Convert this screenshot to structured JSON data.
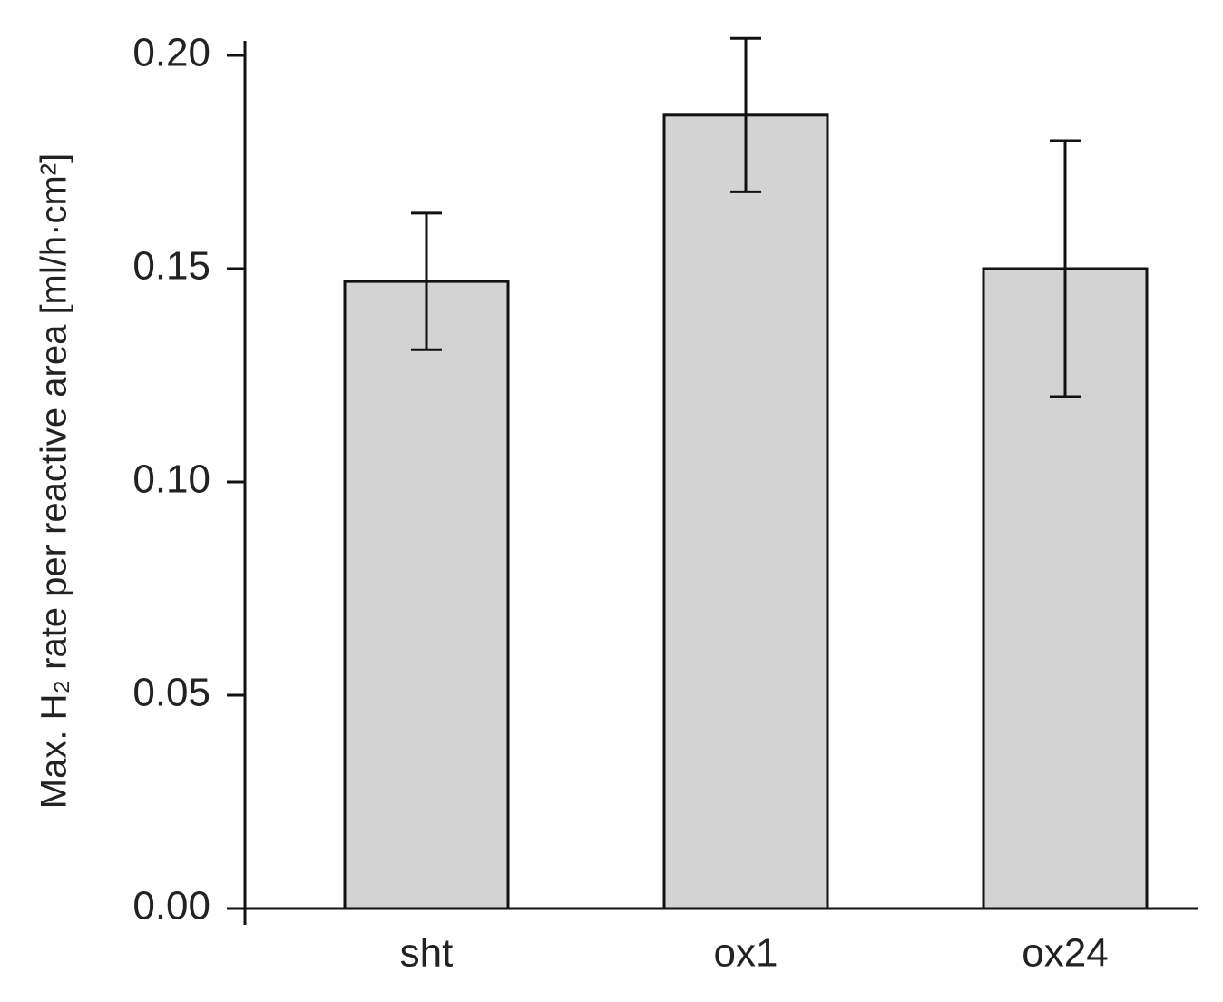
{
  "chart_data": {
    "type": "bar",
    "y_label": "Max. H₂ rate per reactive area [ml/h·cm²]",
    "categories": [
      "sht",
      "ox1",
      "ox24"
    ],
    "values": [
      0.147,
      0.186,
      0.15
    ],
    "errors": [
      0.016,
      0.018,
      0.03
    ],
    "color": "#d3d3d3",
    "ylim": [
      0,
      0.2
    ],
    "yticks": [
      {
        "value": 0,
        "label": "0.00"
      },
      0.05,
      {
        "value": 0.1,
        "label": "0.10"
      },
      0.15,
      {
        "value": 0.2,
        "label": "0.20"
      }
    ]
  }
}
